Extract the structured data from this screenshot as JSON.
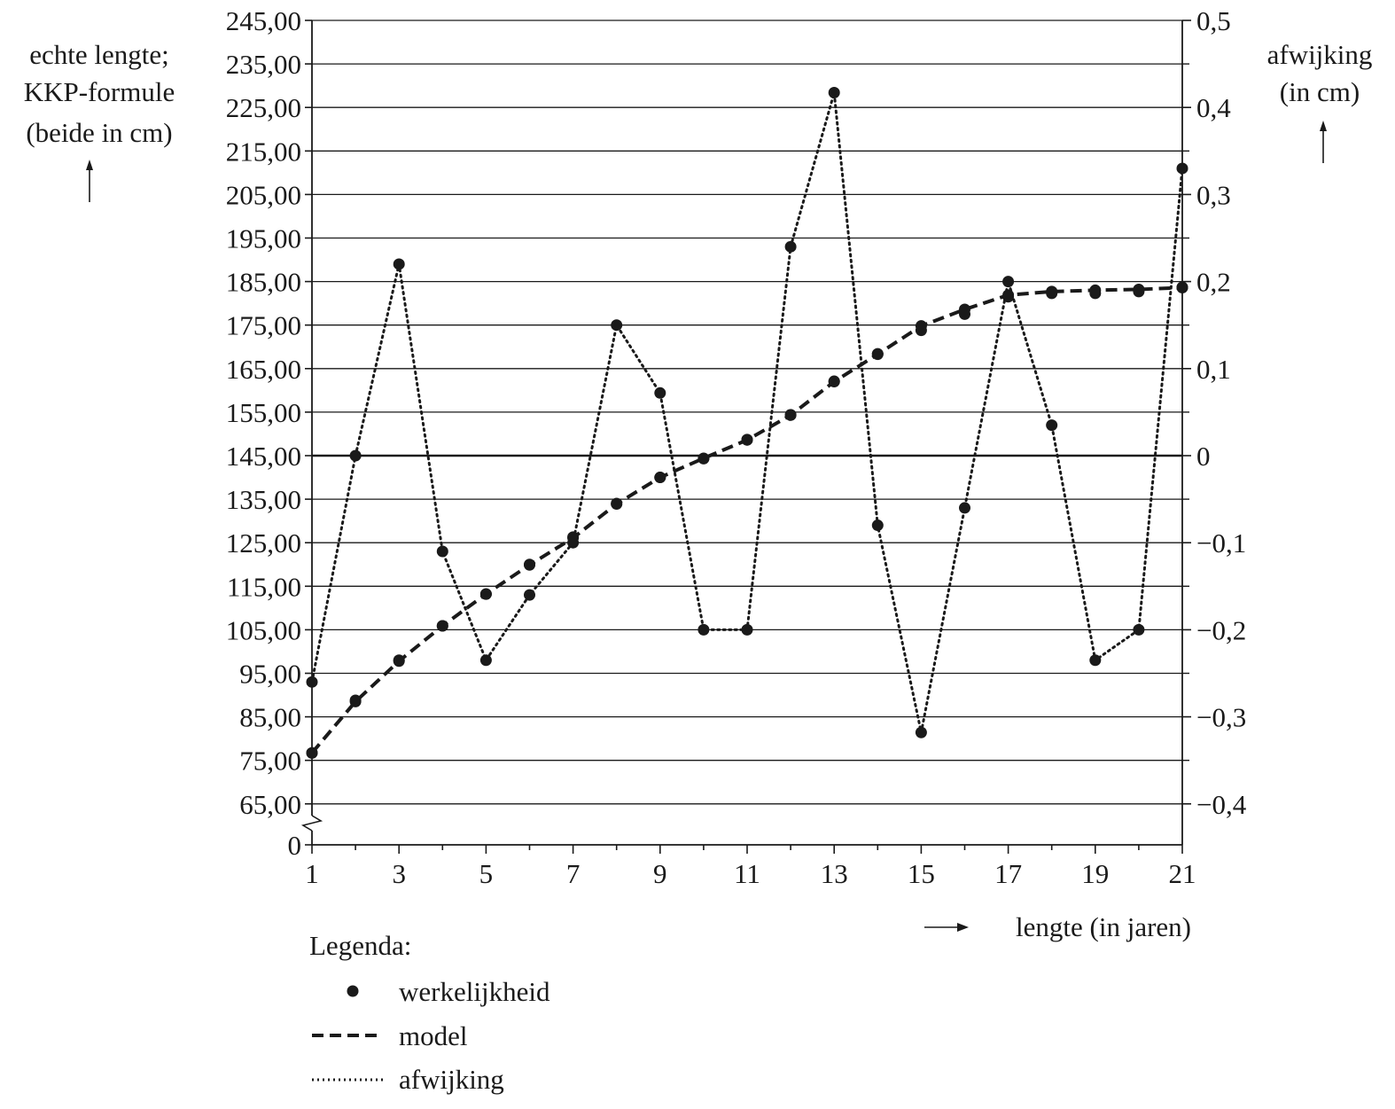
{
  "chart_data": {
    "type": "line",
    "title": "",
    "ylabel_left": [
      "echte lengte;",
      "KKP-formule",
      "(beide in cm)"
    ],
    "ylabel_right": [
      "afwijking",
      "(in cm)"
    ],
    "xlabel": "lengte (in jaren)",
    "x_ticks": [
      "1",
      "3",
      "5",
      "7",
      "9",
      "11",
      "13",
      "15",
      "17",
      "19",
      "21"
    ],
    "x_range": [
      1,
      21
    ],
    "y_left_ticks": [
      "245,00",
      "235,00",
      "225,00",
      "215,00",
      "205,00",
      "195,00",
      "185,00",
      "175,00",
      "165,00",
      "155,00",
      "145,00",
      "135,00",
      "125,00",
      "115,00",
      "105,00",
      "95,00",
      "85,00",
      "75,00",
      "65,00",
      "0"
    ],
    "y_left_range": [
      65,
      245
    ],
    "y_left_axis_break": true,
    "y_right_ticks": [
      "0,5",
      "0,4",
      "0,3",
      "0,2",
      "0,1",
      "0",
      "−0,1",
      "−0,2",
      "−0,3",
      "−0,4"
    ],
    "y_right_range": [
      -0.45,
      0.5
    ],
    "grid": "horizontal",
    "legend": {
      "title": "Legenda:",
      "placement": "bottom-left",
      "items": [
        {
          "marker": "dot",
          "label": "werkelijkheid"
        },
        {
          "marker": "dashed",
          "label": "model"
        },
        {
          "marker": "dotted",
          "label": "afwijking"
        }
      ]
    },
    "series": [
      {
        "name": "werkelijkheid",
        "axis": "left",
        "style": "dots",
        "x": [
          1,
          2,
          3,
          4,
          5,
          6,
          7,
          8,
          9,
          10,
          11,
          12,
          13,
          14,
          15,
          16,
          17,
          18,
          19,
          20,
          21
        ],
        "values": [
          76.7,
          88.8,
          98.0,
          105.9,
          113.2,
          120.0,
          126.3,
          134.0,
          140.0,
          144.3,
          148.7,
          154.4,
          162.1,
          168.4,
          173.8,
          177.5,
          181.5,
          182.3,
          182.3,
          182.7,
          183.7
        ]
      },
      {
        "name": "model",
        "axis": "left",
        "style": "dashed",
        "x": [
          1,
          2,
          3,
          4,
          5,
          6,
          7,
          8,
          9,
          10,
          11,
          12,
          13,
          14,
          15,
          16,
          17,
          18,
          19,
          20,
          21
        ],
        "values": [
          76.7,
          88.5,
          97.8,
          105.9,
          113.2,
          119.9,
          126.1,
          133.9,
          140.0,
          144.4,
          148.6,
          154.3,
          162.0,
          168.3,
          174.8,
          178.6,
          181.9,
          182.7,
          183.0,
          183.2,
          183.6
        ]
      },
      {
        "name": "afwijking",
        "axis": "right",
        "style": "dotted",
        "x": [
          1,
          2,
          3,
          4,
          5,
          6,
          7,
          8,
          9,
          10,
          11,
          12,
          13,
          14,
          15,
          16,
          17,
          18,
          19,
          20,
          21
        ],
        "values": [
          -0.26,
          0.0,
          0.22,
          -0.11,
          -0.235,
          -0.16,
          -0.1,
          0.15,
          0.072,
          -0.2,
          -0.2,
          0.24,
          0.417,
          -0.08,
          -0.318,
          -0.06,
          0.2,
          0.035,
          -0.235,
          -0.2,
          0.33
        ]
      }
    ]
  }
}
